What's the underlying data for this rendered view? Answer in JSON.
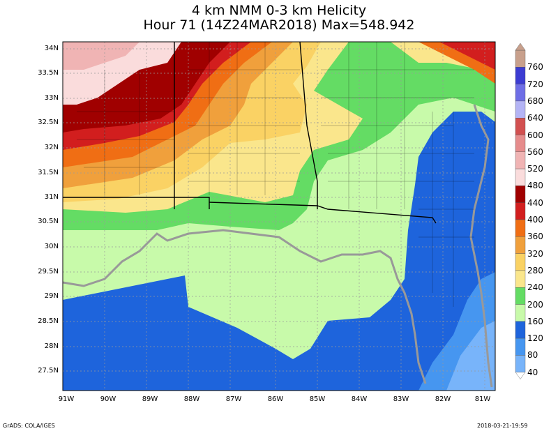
{
  "title": {
    "line1": "4 km NMM 0-3 km Helicity",
    "line2": "Hour 71 (14Z24MAR2018) Max=548.942"
  },
  "latitude_labels": [
    "34N",
    "33.5N",
    "33N",
    "32.5N",
    "32N",
    "31.5N",
    "31N",
    "30.5N",
    "30N",
    "29.5N",
    "29N",
    "28.5N",
    "28N",
    "27.5N"
  ],
  "longitude_labels": [
    "91W",
    "90W",
    "89W",
    "88W",
    "87W",
    "86W",
    "85W",
    "84W",
    "83W",
    "82W",
    "81W"
  ],
  "colorbar": {
    "levels": [
      "760",
      "720",
      "680",
      "640",
      "600",
      "560",
      "520",
      "480",
      "440",
      "400",
      "360",
      "320",
      "280",
      "240",
      "200",
      "160",
      "120",
      "80",
      "40"
    ],
    "colors": [
      "#c8a08c",
      "#3c3cd2",
      "#6e6ee6",
      "#b4b4f5",
      "#d25050",
      "#e68c8c",
      "#f0b4b4",
      "#fadcdc",
      "#a00000",
      "#d21e1e",
      "#f06e14",
      "#f0a03c",
      "#fad264",
      "#fae68c",
      "#64dc64",
      "#c8faaa",
      "#1e64dc",
      "#4696f0",
      "#78b4fa"
    ]
  },
  "footer": {
    "left": "GrADS: COLA/IGES",
    "right": "2018-03-21-19:59"
  }
}
